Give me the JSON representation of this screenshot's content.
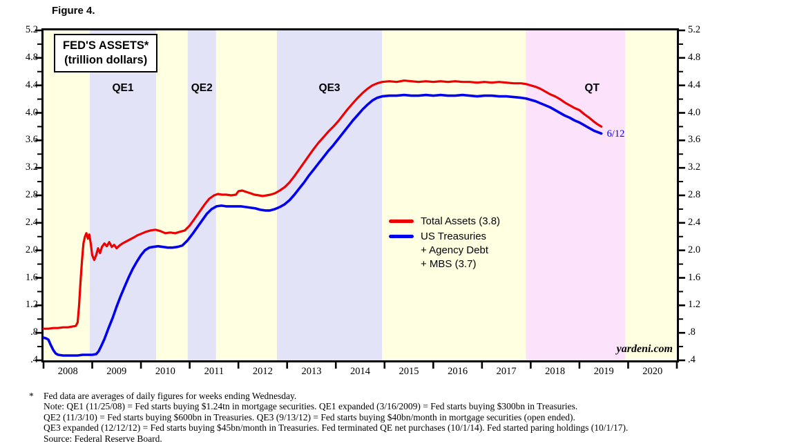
{
  "figure_label": "Figure 4.",
  "footnote_marker": "*",
  "footnotes": [
    "Fed data are averages of daily figures for weeks ending Wednesday.",
    "Note: QE1 (11/25/08) = Fed starts buying $1.24tn in mortgage securities. QE1 expanded (3/16/2009) = Fed starts buying $300bn in Treasuries.",
    "QE2 (11/3/10) = Fed starts buying $600bn in Treasuries. QE3 (9/13/12) = Fed starts buying $40bn/month in mortgage securities (open ended).",
    "QE3 expanded (12/12/12) = Fed starts buying $45bn/month in Treasuries. Fed terminated QE net purchases (10/1/14). Fed started paring holdings (10/1/17).",
    "Source: Federal Reserve Board."
  ],
  "chart_data": {
    "type": "line",
    "title": "FED'S ASSETS*",
    "subtitle": "(trillion dollars)",
    "xlim": [
      2008,
      2021
    ],
    "ylim": [
      0.4,
      5.2
    ],
    "plot_bg": "#ffffe1",
    "grid": false,
    "legend_position": "center-right",
    "y_major_ticks": [
      0.4,
      0.8,
      1.2,
      1.6,
      2.0,
      2.4,
      2.8,
      3.2,
      3.6,
      4.0,
      4.4,
      4.8,
      5.2
    ],
    "y_tick_labels": [
      ".4",
      ".8",
      "1.2",
      "1.6",
      "2.0",
      "2.4",
      "2.8",
      "3.2",
      "3.6",
      "4.0",
      "4.4",
      "4.8",
      "5.2"
    ],
    "y_minor_ticks": [
      0.6,
      1.0,
      1.4,
      1.8,
      2.2,
      2.6,
      3.0,
      3.4,
      3.8,
      4.2,
      4.6,
      5.0
    ],
    "x_boundary_ticks": [
      2008,
      2009,
      2010,
      2011,
      2012,
      2013,
      2014,
      2015,
      2016,
      2017,
      2018,
      2019,
      2020,
      2021
    ],
    "x_year_labels": [
      "2008",
      "2009",
      "2010",
      "2011",
      "2012",
      "2013",
      "2014",
      "2015",
      "2016",
      "2017",
      "2018",
      "2019",
      "2020"
    ],
    "bands": [
      {
        "label": "QE1",
        "from": 2008.95,
        "to": 2010.31,
        "color": "#e3e3f8",
        "label_dx": 0
      },
      {
        "label": "QE2",
        "from": 2010.96,
        "to": 2011.54,
        "color": "#e3e3f8",
        "label_dx": 0
      },
      {
        "label": "QE3",
        "from": 2012.79,
        "to": 2014.95,
        "color": "#e3e3f8",
        "label_dx": 0
      },
      {
        "label": "QT",
        "from": 2017.9,
        "to": 2019.94,
        "color": "#fce3fb",
        "label_dx": 24
      }
    ],
    "legend": {
      "entries": [
        {
          "lines": [
            "Total Assets (3.8)"
          ]
        },
        {
          "lines": [
            "US Treasuries",
            "+ Agency Debt",
            "+ MBS (3.7)"
          ]
        }
      ]
    },
    "end_label": {
      "text": "6/12",
      "x": 2019.45,
      "y": 3.68,
      "color": "#0000ee"
    },
    "watermark": "yardeni.com",
    "series": [
      {
        "name": "Total Assets (3.8)",
        "color": "#ee0000",
        "width": 3.2,
        "last_value": 3.8,
        "points": [
          [
            2008.0,
            0.86
          ],
          [
            2008.1,
            0.86
          ],
          [
            2008.2,
            0.87
          ],
          [
            2008.3,
            0.87
          ],
          [
            2008.4,
            0.88
          ],
          [
            2008.5,
            0.88
          ],
          [
            2008.58,
            0.89
          ],
          [
            2008.66,
            0.9
          ],
          [
            2008.7,
            0.95
          ],
          [
            2008.73,
            1.2
          ],
          [
            2008.76,
            1.55
          ],
          [
            2008.79,
            1.85
          ],
          [
            2008.82,
            2.1
          ],
          [
            2008.85,
            2.2
          ],
          [
            2008.88,
            2.25
          ],
          [
            2008.91,
            2.17
          ],
          [
            2008.94,
            2.23
          ],
          [
            2008.97,
            2.1
          ],
          [
            2009.0,
            1.93
          ],
          [
            2009.04,
            1.86
          ],
          [
            2009.08,
            1.93
          ],
          [
            2009.12,
            2.03
          ],
          [
            2009.16,
            1.96
          ],
          [
            2009.2,
            2.05
          ],
          [
            2009.25,
            2.1
          ],
          [
            2009.3,
            2.06
          ],
          [
            2009.35,
            2.12
          ],
          [
            2009.4,
            2.05
          ],
          [
            2009.45,
            2.08
          ],
          [
            2009.5,
            2.03
          ],
          [
            2009.56,
            2.07
          ],
          [
            2009.62,
            2.1
          ],
          [
            2009.7,
            2.13
          ],
          [
            2009.78,
            2.16
          ],
          [
            2009.86,
            2.19
          ],
          [
            2009.93,
            2.22
          ],
          [
            2010.0,
            2.24
          ],
          [
            2010.1,
            2.27
          ],
          [
            2010.2,
            2.29
          ],
          [
            2010.3,
            2.3
          ],
          [
            2010.4,
            2.28
          ],
          [
            2010.5,
            2.25
          ],
          [
            2010.6,
            2.26
          ],
          [
            2010.7,
            2.25
          ],
          [
            2010.8,
            2.27
          ],
          [
            2010.9,
            2.29
          ],
          [
            2011.0,
            2.36
          ],
          [
            2011.1,
            2.46
          ],
          [
            2011.2,
            2.56
          ],
          [
            2011.3,
            2.66
          ],
          [
            2011.4,
            2.75
          ],
          [
            2011.5,
            2.8
          ],
          [
            2011.58,
            2.82
          ],
          [
            2011.66,
            2.81
          ],
          [
            2011.75,
            2.81
          ],
          [
            2011.85,
            2.8
          ],
          [
            2011.95,
            2.81
          ],
          [
            2012.0,
            2.86
          ],
          [
            2012.08,
            2.87
          ],
          [
            2012.16,
            2.85
          ],
          [
            2012.25,
            2.83
          ],
          [
            2012.33,
            2.81
          ],
          [
            2012.42,
            2.8
          ],
          [
            2012.5,
            2.79
          ],
          [
            2012.58,
            2.8
          ],
          [
            2012.66,
            2.81
          ],
          [
            2012.75,
            2.83
          ],
          [
            2012.85,
            2.87
          ],
          [
            2012.95,
            2.92
          ],
          [
            2013.05,
            2.99
          ],
          [
            2013.15,
            3.08
          ],
          [
            2013.25,
            3.18
          ],
          [
            2013.35,
            3.28
          ],
          [
            2013.45,
            3.38
          ],
          [
            2013.55,
            3.48
          ],
          [
            2013.65,
            3.57
          ],
          [
            2013.75,
            3.65
          ],
          [
            2013.85,
            3.73
          ],
          [
            2013.95,
            3.8
          ],
          [
            2014.05,
            3.88
          ],
          [
            2014.15,
            3.97
          ],
          [
            2014.25,
            4.06
          ],
          [
            2014.35,
            4.14
          ],
          [
            2014.45,
            4.22
          ],
          [
            2014.55,
            4.29
          ],
          [
            2014.65,
            4.35
          ],
          [
            2014.75,
            4.4
          ],
          [
            2014.85,
            4.43
          ],
          [
            2014.95,
            4.45
          ],
          [
            2015.1,
            4.46
          ],
          [
            2015.25,
            4.45
          ],
          [
            2015.4,
            4.47
          ],
          [
            2015.55,
            4.46
          ],
          [
            2015.7,
            4.45
          ],
          [
            2015.85,
            4.46
          ],
          [
            2016.0,
            4.45
          ],
          [
            2016.15,
            4.46
          ],
          [
            2016.3,
            4.45
          ],
          [
            2016.45,
            4.46
          ],
          [
            2016.6,
            4.45
          ],
          [
            2016.75,
            4.45
          ],
          [
            2016.9,
            4.44
          ],
          [
            2017.05,
            4.45
          ],
          [
            2017.2,
            4.44
          ],
          [
            2017.35,
            4.45
          ],
          [
            2017.5,
            4.44
          ],
          [
            2017.65,
            4.43
          ],
          [
            2017.8,
            4.43
          ],
          [
            2017.9,
            4.42
          ],
          [
            2018.0,
            4.4
          ],
          [
            2018.1,
            4.38
          ],
          [
            2018.2,
            4.35
          ],
          [
            2018.3,
            4.31
          ],
          [
            2018.4,
            4.27
          ],
          [
            2018.5,
            4.24
          ],
          [
            2018.6,
            4.2
          ],
          [
            2018.7,
            4.15
          ],
          [
            2018.8,
            4.11
          ],
          [
            2018.9,
            4.07
          ],
          [
            2019.0,
            4.04
          ],
          [
            2019.1,
            3.98
          ],
          [
            2019.2,
            3.93
          ],
          [
            2019.3,
            3.87
          ],
          [
            2019.38,
            3.83
          ],
          [
            2019.45,
            3.8
          ]
        ]
      },
      {
        "name": "US Treasuries + Agency Debt + MBS (3.7)",
        "color": "#0000ee",
        "width": 3.6,
        "last_value": 3.7,
        "points": [
          [
            2008.0,
            0.73
          ],
          [
            2008.05,
            0.72
          ],
          [
            2008.1,
            0.7
          ],
          [
            2008.15,
            0.62
          ],
          [
            2008.2,
            0.55
          ],
          [
            2008.25,
            0.5
          ],
          [
            2008.3,
            0.48
          ],
          [
            2008.4,
            0.47
          ],
          [
            2008.5,
            0.47
          ],
          [
            2008.6,
            0.47
          ],
          [
            2008.7,
            0.47
          ],
          [
            2008.8,
            0.48
          ],
          [
            2008.9,
            0.48
          ],
          [
            2009.0,
            0.48
          ],
          [
            2009.08,
            0.49
          ],
          [
            2009.13,
            0.53
          ],
          [
            2009.18,
            0.6
          ],
          [
            2009.25,
            0.71
          ],
          [
            2009.33,
            0.86
          ],
          [
            2009.42,
            1.02
          ],
          [
            2009.5,
            1.18
          ],
          [
            2009.58,
            1.33
          ],
          [
            2009.67,
            1.48
          ],
          [
            2009.75,
            1.61
          ],
          [
            2009.83,
            1.73
          ],
          [
            2009.92,
            1.84
          ],
          [
            2010.0,
            1.93
          ],
          [
            2010.08,
            2.0
          ],
          [
            2010.17,
            2.04
          ],
          [
            2010.25,
            2.05
          ],
          [
            2010.35,
            2.06
          ],
          [
            2010.45,
            2.05
          ],
          [
            2010.55,
            2.04
          ],
          [
            2010.65,
            2.04
          ],
          [
            2010.75,
            2.05
          ],
          [
            2010.85,
            2.07
          ],
          [
            2010.95,
            2.14
          ],
          [
            2011.05,
            2.23
          ],
          [
            2011.15,
            2.33
          ],
          [
            2011.25,
            2.43
          ],
          [
            2011.35,
            2.53
          ],
          [
            2011.45,
            2.6
          ],
          [
            2011.55,
            2.64
          ],
          [
            2011.65,
            2.65
          ],
          [
            2011.75,
            2.64
          ],
          [
            2011.85,
            2.64
          ],
          [
            2011.95,
            2.64
          ],
          [
            2012.05,
            2.64
          ],
          [
            2012.15,
            2.63
          ],
          [
            2012.25,
            2.62
          ],
          [
            2012.35,
            2.61
          ],
          [
            2012.45,
            2.59
          ],
          [
            2012.55,
            2.58
          ],
          [
            2012.65,
            2.58
          ],
          [
            2012.75,
            2.6
          ],
          [
            2012.85,
            2.63
          ],
          [
            2012.95,
            2.67
          ],
          [
            2013.05,
            2.73
          ],
          [
            2013.15,
            2.81
          ],
          [
            2013.25,
            2.9
          ],
          [
            2013.35,
            2.99
          ],
          [
            2013.45,
            3.09
          ],
          [
            2013.55,
            3.18
          ],
          [
            2013.65,
            3.27
          ],
          [
            2013.75,
            3.36
          ],
          [
            2013.85,
            3.45
          ],
          [
            2013.95,
            3.53
          ],
          [
            2014.05,
            3.62
          ],
          [
            2014.15,
            3.71
          ],
          [
            2014.25,
            3.8
          ],
          [
            2014.35,
            3.89
          ],
          [
            2014.45,
            3.97
          ],
          [
            2014.55,
            4.05
          ],
          [
            2014.65,
            4.12
          ],
          [
            2014.75,
            4.18
          ],
          [
            2014.85,
            4.22
          ],
          [
            2014.95,
            4.24
          ],
          [
            2015.1,
            4.25
          ],
          [
            2015.25,
            4.25
          ],
          [
            2015.4,
            4.26
          ],
          [
            2015.55,
            4.25
          ],
          [
            2015.7,
            4.25
          ],
          [
            2015.85,
            4.26
          ],
          [
            2016.0,
            4.25
          ],
          [
            2016.15,
            4.26
          ],
          [
            2016.3,
            4.25
          ],
          [
            2016.45,
            4.25
          ],
          [
            2016.6,
            4.26
          ],
          [
            2016.75,
            4.25
          ],
          [
            2016.9,
            4.24
          ],
          [
            2017.05,
            4.25
          ],
          [
            2017.2,
            4.25
          ],
          [
            2017.35,
            4.24
          ],
          [
            2017.5,
            4.24
          ],
          [
            2017.65,
            4.23
          ],
          [
            2017.8,
            4.22
          ],
          [
            2017.9,
            4.21
          ],
          [
            2018.0,
            4.19
          ],
          [
            2018.1,
            4.17
          ],
          [
            2018.2,
            4.14
          ],
          [
            2018.3,
            4.11
          ],
          [
            2018.4,
            4.08
          ],
          [
            2018.5,
            4.04
          ],
          [
            2018.6,
            4.0
          ],
          [
            2018.7,
            3.96
          ],
          [
            2018.8,
            3.93
          ],
          [
            2018.9,
            3.89
          ],
          [
            2019.0,
            3.86
          ],
          [
            2019.1,
            3.82
          ],
          [
            2019.2,
            3.78
          ],
          [
            2019.3,
            3.74
          ],
          [
            2019.45,
            3.7
          ]
        ]
      }
    ]
  }
}
